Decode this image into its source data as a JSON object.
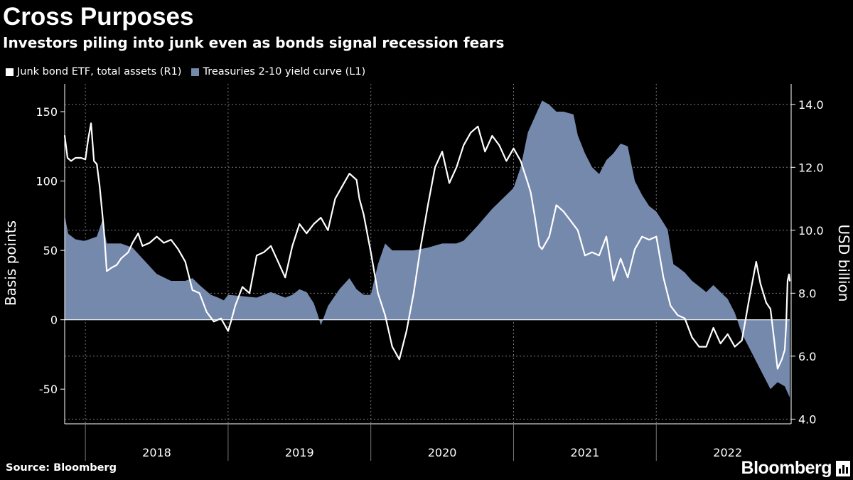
{
  "header": {
    "title": "Cross Purposes",
    "subtitle": "Investors piling into junk even as bonds signal recession fears"
  },
  "footer": {
    "source": "Source: Bloomberg",
    "brand": "Bloomberg"
  },
  "colors": {
    "background": "#000000",
    "area": "#7589ad",
    "line": "#ffffff",
    "grid": "#777777"
  },
  "chart_data": {
    "type": "area",
    "title": "Cross Purposes",
    "subtitle": "Investors piling into junk even as bonds signal recession fears",
    "legend_position": "top-left",
    "grid": true,
    "left_axis": {
      "label": "Basis points",
      "range": [
        -75,
        170
      ],
      "ticks": [
        150,
        100,
        50,
        0,
        -50
      ],
      "tick_labels": [
        "150",
        "100",
        "50",
        "0",
        "-50"
      ]
    },
    "right_axis": {
      "label": "USD billion",
      "range": [
        3.85,
        14.65
      ],
      "ticks": [
        14,
        12,
        10,
        8,
        6,
        4
      ],
      "tick_labels": [
        "14.0",
        "12.0",
        "10.0",
        "8.0",
        "6.0",
        "4.0"
      ]
    },
    "x_axis": {
      "range": [
        2017.855,
        2022.945
      ],
      "year_boundaries": [
        2018,
        2019,
        2020,
        2021,
        2022
      ],
      "labels": [
        {
          "text": "2018",
          "x": 2018.5
        },
        {
          "text": "2019",
          "x": 2019.5
        },
        {
          "text": "2020",
          "x": 2020.5
        },
        {
          "text": "2021",
          "x": 2021.5
        },
        {
          "text": "2022",
          "x": 2022.5
        }
      ]
    },
    "series": [
      {
        "name": "Treasuries 2-10 yield curve (L1)",
        "legend": "Treasuries 2-10 yield curve (L1)",
        "axis": "left",
        "kind": "area",
        "points": [
          [
            2017.855,
            75
          ],
          [
            2017.88,
            62
          ],
          [
            2017.93,
            58
          ],
          [
            2017.98,
            57
          ],
          [
            2018.0,
            57
          ],
          [
            2018.08,
            60
          ],
          [
            2018.12,
            72
          ],
          [
            2018.15,
            55
          ],
          [
            2018.25,
            55
          ],
          [
            2018.33,
            52
          ],
          [
            2018.42,
            42
          ],
          [
            2018.5,
            33
          ],
          [
            2018.6,
            28
          ],
          [
            2018.7,
            28
          ],
          [
            2018.75,
            30
          ],
          [
            2018.8,
            25
          ],
          [
            2018.88,
            18
          ],
          [
            2018.93,
            16
          ],
          [
            2018.97,
            14
          ],
          [
            2019.0,
            18
          ],
          [
            2019.1,
            17
          ],
          [
            2019.2,
            16
          ],
          [
            2019.3,
            20
          ],
          [
            2019.4,
            16
          ],
          [
            2019.45,
            18
          ],
          [
            2019.5,
            22
          ],
          [
            2019.55,
            20
          ],
          [
            2019.6,
            12
          ],
          [
            2019.63,
            3
          ],
          [
            2019.65,
            -4
          ],
          [
            2019.7,
            10
          ],
          [
            2019.78,
            22
          ],
          [
            2019.85,
            30
          ],
          [
            2019.9,
            22
          ],
          [
            2019.95,
            18
          ],
          [
            2020.0,
            18
          ],
          [
            2020.05,
            40
          ],
          [
            2020.1,
            55
          ],
          [
            2020.15,
            50
          ],
          [
            2020.2,
            50
          ],
          [
            2020.3,
            50
          ],
          [
            2020.4,
            52
          ],
          [
            2020.5,
            55
          ],
          [
            2020.6,
            55
          ],
          [
            2020.65,
            57
          ],
          [
            2020.75,
            68
          ],
          [
            2020.85,
            80
          ],
          [
            2020.95,
            90
          ],
          [
            2021.0,
            95
          ],
          [
            2021.05,
            110
          ],
          [
            2021.1,
            135
          ],
          [
            2021.2,
            158
          ],
          [
            2021.25,
            155
          ],
          [
            2021.3,
            150
          ],
          [
            2021.35,
            150
          ],
          [
            2021.42,
            148
          ],
          [
            2021.45,
            133
          ],
          [
            2021.5,
            120
          ],
          [
            2021.55,
            110
          ],
          [
            2021.6,
            105
          ],
          [
            2021.65,
            115
          ],
          [
            2021.7,
            120
          ],
          [
            2021.75,
            127
          ],
          [
            2021.8,
            125
          ],
          [
            2021.85,
            100
          ],
          [
            2021.9,
            90
          ],
          [
            2021.95,
            82
          ],
          [
            2022.0,
            78
          ],
          [
            2022.05,
            70
          ],
          [
            2022.08,
            65
          ],
          [
            2022.1,
            52
          ],
          [
            2022.12,
            40
          ],
          [
            2022.15,
            38
          ],
          [
            2022.2,
            34
          ],
          [
            2022.25,
            28
          ],
          [
            2022.3,
            24
          ],
          [
            2022.35,
            20
          ],
          [
            2022.4,
            25
          ],
          [
            2022.45,
            20
          ],
          [
            2022.5,
            15
          ],
          [
            2022.55,
            5
          ],
          [
            2022.6,
            -10
          ],
          [
            2022.65,
            -20
          ],
          [
            2022.7,
            -30
          ],
          [
            2022.75,
            -40
          ],
          [
            2022.8,
            -50
          ],
          [
            2022.85,
            -45
          ],
          [
            2022.9,
            -48
          ],
          [
            2022.935,
            -56
          ]
        ]
      },
      {
        "name": "Junk bond ETF, total assets (R1)",
        "legend": "Junk bond ETF, total assets (R1)",
        "axis": "right",
        "kind": "line",
        "points": [
          [
            2017.855,
            13.0
          ],
          [
            2017.875,
            12.3
          ],
          [
            2017.9,
            12.2
          ],
          [
            2017.93,
            12.3
          ],
          [
            2017.97,
            12.3
          ],
          [
            2018.0,
            12.25
          ],
          [
            2018.02,
            12.9
          ],
          [
            2018.04,
            13.4
          ],
          [
            2018.06,
            12.2
          ],
          [
            2018.08,
            12.1
          ],
          [
            2018.1,
            11.4
          ],
          [
            2018.13,
            10.0
          ],
          [
            2018.15,
            8.7
          ],
          [
            2018.18,
            8.8
          ],
          [
            2018.22,
            8.9
          ],
          [
            2018.25,
            9.1
          ],
          [
            2018.3,
            9.3
          ],
          [
            2018.33,
            9.6
          ],
          [
            2018.37,
            9.9
          ],
          [
            2018.4,
            9.5
          ],
          [
            2018.45,
            9.6
          ],
          [
            2018.5,
            9.8
          ],
          [
            2018.55,
            9.6
          ],
          [
            2018.6,
            9.7
          ],
          [
            2018.65,
            9.4
          ],
          [
            2018.7,
            9.0
          ],
          [
            2018.75,
            8.1
          ],
          [
            2018.8,
            8.0
          ],
          [
            2018.85,
            7.4
          ],
          [
            2018.9,
            7.1
          ],
          [
            2018.95,
            7.2
          ],
          [
            2019.0,
            6.8
          ],
          [
            2019.02,
            7.1
          ],
          [
            2019.05,
            7.6
          ],
          [
            2019.1,
            8.2
          ],
          [
            2019.15,
            8.0
          ],
          [
            2019.2,
            9.2
          ],
          [
            2019.25,
            9.3
          ],
          [
            2019.3,
            9.5
          ],
          [
            2019.35,
            9.0
          ],
          [
            2019.4,
            8.5
          ],
          [
            2019.45,
            9.5
          ],
          [
            2019.5,
            10.2
          ],
          [
            2019.55,
            9.9
          ],
          [
            2019.6,
            10.2
          ],
          [
            2019.65,
            10.4
          ],
          [
            2019.7,
            10.0
          ],
          [
            2019.75,
            11.0
          ],
          [
            2019.8,
            11.4
          ],
          [
            2019.85,
            11.8
          ],
          [
            2019.9,
            11.6
          ],
          [
            2019.92,
            11.0
          ],
          [
            2019.95,
            10.5
          ],
          [
            2020.0,
            9.3
          ],
          [
            2020.05,
            8.0
          ],
          [
            2020.1,
            7.3
          ],
          [
            2020.15,
            6.3
          ],
          [
            2020.2,
            5.9
          ],
          [
            2020.25,
            6.8
          ],
          [
            2020.3,
            8.0
          ],
          [
            2020.35,
            9.5
          ],
          [
            2020.4,
            10.8
          ],
          [
            2020.45,
            12.0
          ],
          [
            2020.5,
            12.5
          ],
          [
            2020.55,
            11.5
          ],
          [
            2020.6,
            12.0
          ],
          [
            2020.65,
            12.7
          ],
          [
            2020.7,
            13.1
          ],
          [
            2020.75,
            13.3
          ],
          [
            2020.8,
            12.5
          ],
          [
            2020.85,
            13.0
          ],
          [
            2020.9,
            12.7
          ],
          [
            2020.95,
            12.2
          ],
          [
            2021.0,
            12.6
          ],
          [
            2021.05,
            12.2
          ],
          [
            2021.1,
            11.5
          ],
          [
            2021.12,
            11.2
          ],
          [
            2021.15,
            10.4
          ],
          [
            2021.18,
            9.5
          ],
          [
            2021.2,
            9.4
          ],
          [
            2021.25,
            9.8
          ],
          [
            2021.3,
            10.8
          ],
          [
            2021.35,
            10.6
          ],
          [
            2021.4,
            10.3
          ],
          [
            2021.45,
            10.0
          ],
          [
            2021.5,
            9.2
          ],
          [
            2021.55,
            9.3
          ],
          [
            2021.6,
            9.2
          ],
          [
            2021.65,
            9.8
          ],
          [
            2021.7,
            8.4
          ],
          [
            2021.75,
            9.1
          ],
          [
            2021.8,
            8.5
          ],
          [
            2021.85,
            9.4
          ],
          [
            2021.9,
            9.8
          ],
          [
            2021.95,
            9.7
          ],
          [
            2022.0,
            9.8
          ],
          [
            2022.05,
            8.5
          ],
          [
            2022.1,
            7.6
          ],
          [
            2022.15,
            7.3
          ],
          [
            2022.2,
            7.2
          ],
          [
            2022.25,
            6.6
          ],
          [
            2022.3,
            6.3
          ],
          [
            2022.35,
            6.3
          ],
          [
            2022.4,
            6.9
          ],
          [
            2022.45,
            6.4
          ],
          [
            2022.5,
            6.7
          ],
          [
            2022.55,
            6.3
          ],
          [
            2022.6,
            6.5
          ],
          [
            2022.65,
            7.8
          ],
          [
            2022.7,
            9.0
          ],
          [
            2022.73,
            8.3
          ],
          [
            2022.77,
            7.7
          ],
          [
            2022.8,
            7.5
          ],
          [
            2022.85,
            5.6
          ],
          [
            2022.88,
            5.9
          ],
          [
            2022.9,
            6.2
          ],
          [
            2022.91,
            7.0
          ],
          [
            2022.92,
            8.4
          ],
          [
            2022.93,
            8.6
          ],
          [
            2022.935,
            8.4
          ]
        ]
      }
    ]
  }
}
